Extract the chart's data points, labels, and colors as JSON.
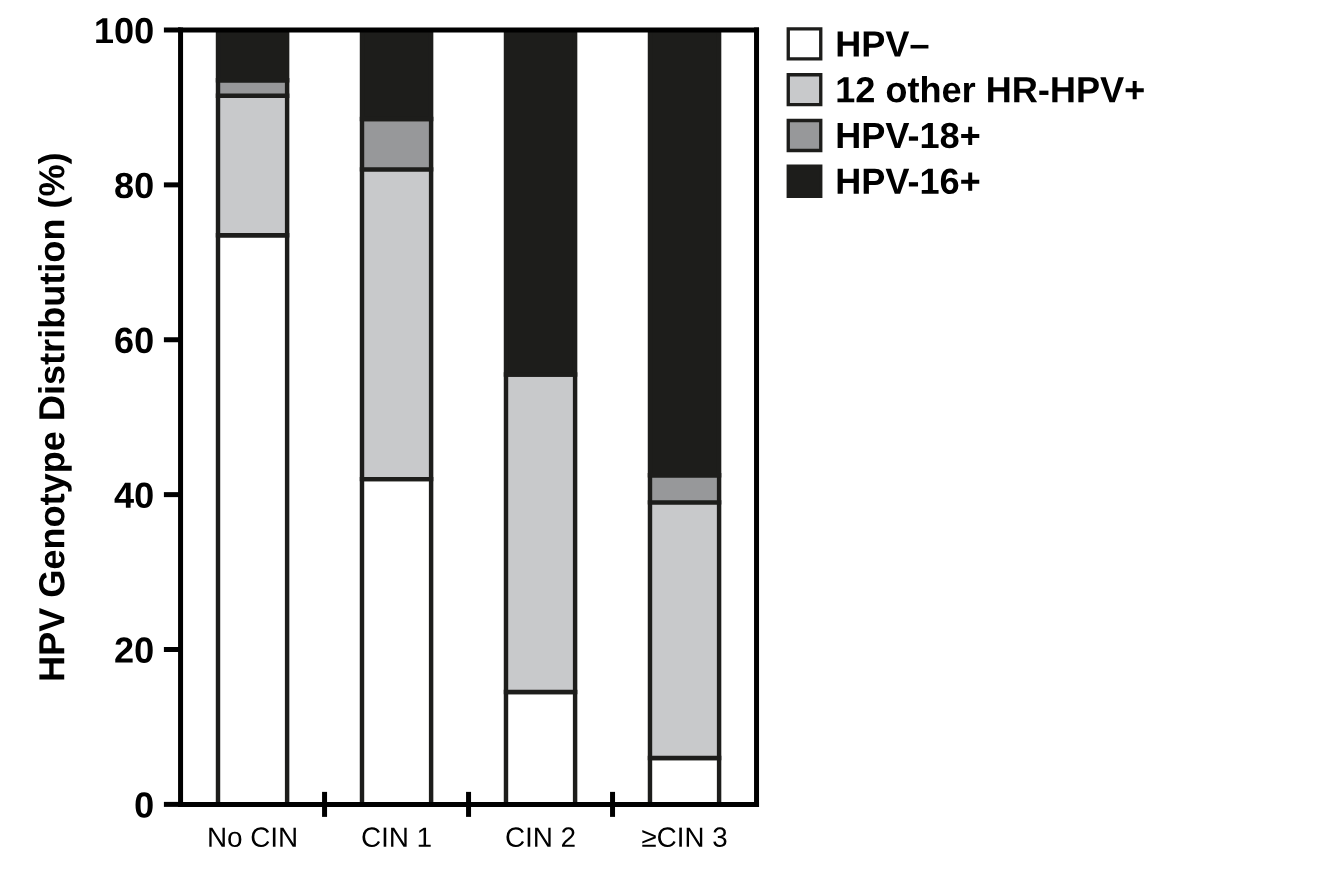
{
  "chart_data": {
    "type": "bar",
    "stacked": true,
    "ylabel": "HPV Genotype Distribution (%)",
    "categories": [
      "No CIN",
      "CIN 1",
      "CIN 2",
      "≥CIN 3"
    ],
    "series": [
      {
        "name": "HPV–",
        "color": "#ffffff",
        "values": [
          73.5,
          42,
          14.5,
          6
        ]
      },
      {
        "name": "12 other HR-HPV+",
        "color": "#c8c9cb",
        "values": [
          18,
          40,
          41,
          33
        ]
      },
      {
        "name": "HPV-18+",
        "color": "#97989a",
        "values": [
          2,
          6.5,
          null,
          3.5
        ]
      },
      {
        "name": "HPV-16+",
        "color": "#1d1d1b",
        "values": [
          6.5,
          11.5,
          44.5,
          57.5
        ]
      }
    ],
    "ylim": [
      0,
      100
    ],
    "yticks": [
      0,
      20,
      40,
      60,
      80,
      100
    ],
    "grid": false,
    "legend": "top right"
  }
}
